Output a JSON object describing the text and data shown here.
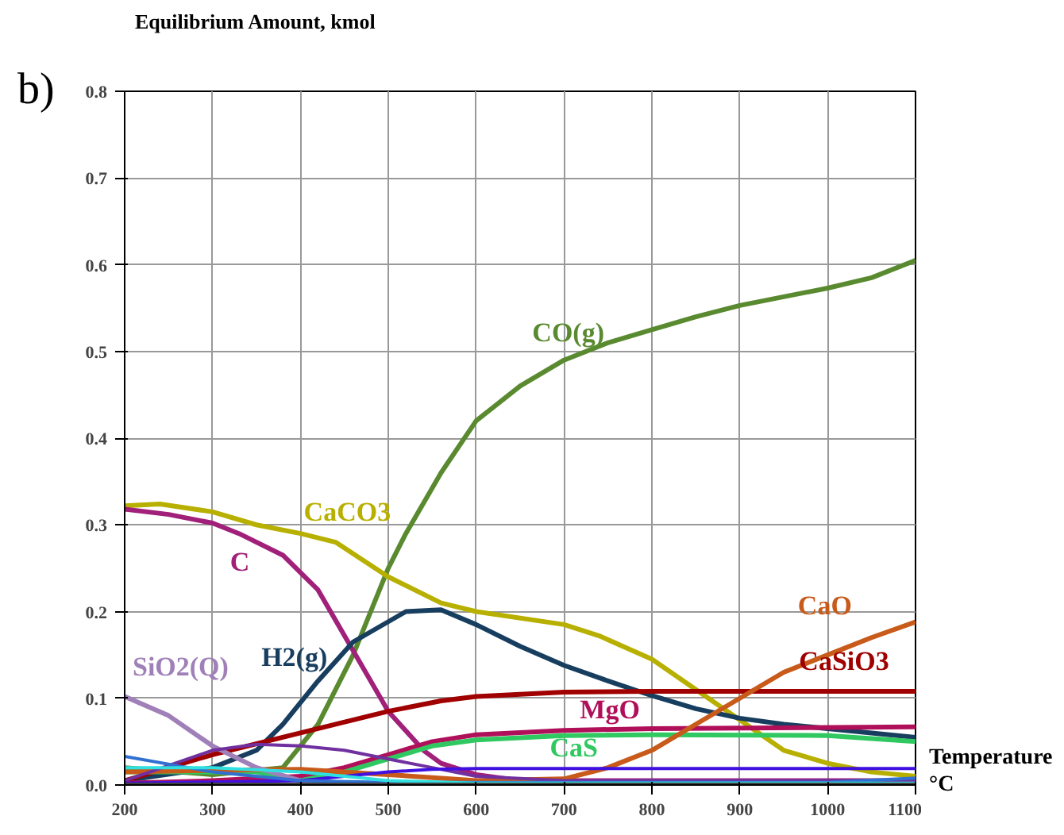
{
  "chart_data": {
    "type": "line",
    "ylabel": "Equilibrium Amount, kmol",
    "xlabel": "Temperature °C",
    "annotations": [
      "b)"
    ],
    "xlim": [
      200,
      1100
    ],
    "ylim": [
      0,
      0.8
    ],
    "xticks": [
      200,
      300,
      400,
      500,
      600,
      700,
      800,
      900,
      1000,
      1100
    ],
    "yticks": [
      {
        "value": 0,
        "label": "0.0"
      },
      0.1,
      0.2,
      0.3,
      0.4,
      0.5,
      0.6,
      0.7,
      0.8
    ],
    "grid": true,
    "marker": "none",
    "line_style": "solid",
    "series": [
      {
        "name": "CO(g)",
        "color": "#5a8a30",
        "x": [
          200,
          300,
          380,
          420,
          460,
          500,
          520,
          560,
          600,
          650,
          700,
          750,
          800,
          850,
          900,
          950,
          1000,
          1050,
          1100
        ],
        "values": [
          0.02,
          0.012,
          0.02,
          0.07,
          0.15,
          0.25,
          0.29,
          0.36,
          0.42,
          0.46,
          0.49,
          0.51,
          0.525,
          0.54,
          0.553,
          0.563,
          0.573,
          0.585,
          0.605
        ]
      },
      {
        "name": "CaCO3",
        "color": "#b8b000",
        "x": [
          200,
          240,
          300,
          350,
          400,
          440,
          500,
          560,
          600,
          700,
          740,
          800,
          850,
          900,
          950,
          1000,
          1050,
          1100
        ],
        "values": [
          0.322,
          0.324,
          0.315,
          0.3,
          0.29,
          0.28,
          0.24,
          0.21,
          0.2,
          0.185,
          0.172,
          0.145,
          0.11,
          0.075,
          0.04,
          0.025,
          0.015,
          0.01
        ]
      },
      {
        "name": "C",
        "color": "#a0207a",
        "x": [
          200,
          250,
          300,
          330,
          380,
          420,
          460,
          500,
          540,
          560,
          600,
          650,
          700,
          1100
        ],
        "values": [
          0.318,
          0.312,
          0.302,
          0.29,
          0.265,
          0.225,
          0.155,
          0.085,
          0.04,
          0.025,
          0.012,
          0.005,
          0.005,
          0.005
        ]
      },
      {
        "name": "H2(g)",
        "color": "#173e5f",
        "x": [
          200,
          300,
          350,
          380,
          420,
          460,
          520,
          560,
          600,
          650,
          700,
          750,
          800,
          850,
          900,
          950,
          1000,
          1050,
          1100
        ],
        "values": [
          0.005,
          0.02,
          0.04,
          0.07,
          0.12,
          0.165,
          0.2,
          0.202,
          0.185,
          0.16,
          0.138,
          0.12,
          0.103,
          0.088,
          0.077,
          0.07,
          0.065,
          0.06,
          0.055
        ]
      },
      {
        "name": "CaSiO3",
        "color": "#a00000",
        "x": [
          200,
          300,
          400,
          500,
          560,
          600,
          700,
          800,
          1100
        ],
        "values": [
          0.005,
          0.035,
          0.06,
          0.085,
          0.097,
          0.102,
          0.107,
          0.108,
          0.108
        ]
      },
      {
        "name": "MgO",
        "color": "#b0105a",
        "x": [
          200,
          300,
          400,
          450,
          500,
          550,
          600,
          700,
          800,
          1100
        ],
        "values": [
          0.002,
          0.005,
          0.01,
          0.02,
          0.035,
          0.05,
          0.058,
          0.063,
          0.065,
          0.067
        ]
      },
      {
        "name": "CaS",
        "color": "#30c860",
        "x": [
          200,
          350,
          400,
          450,
          500,
          550,
          600,
          700,
          800,
          1000,
          1100
        ],
        "values": [
          0.015,
          0.015,
          0.005,
          0.015,
          0.03,
          0.045,
          0.052,
          0.057,
          0.058,
          0.057,
          0.05
        ]
      },
      {
        "name": "CaO",
        "color": "#c85a1a",
        "x": [
          200,
          300,
          400,
          500,
          600,
          700,
          750,
          800,
          850,
          900,
          950,
          1000,
          1050,
          1100
        ],
        "values": [
          0.015,
          0.017,
          0.018,
          0.012,
          0.005,
          0.007,
          0.02,
          0.04,
          0.07,
          0.1,
          0.13,
          0.15,
          0.17,
          0.188
        ]
      },
      {
        "name": "SiO2(Q)",
        "color": "#a080b8",
        "x": [
          200,
          250,
          300,
          350,
          400,
          450
        ],
        "values": [
          0.102,
          0.08,
          0.045,
          0.02,
          0.005,
          0.002
        ]
      },
      {
        "color": "#7030a0",
        "x": [
          200,
          300,
          350,
          400,
          450,
          500,
          550,
          600,
          700,
          1100
        ],
        "values": [
          0.005,
          0.04,
          0.047,
          0.045,
          0.04,
          0.03,
          0.02,
          0.01,
          0.005,
          0.005
        ]
      },
      {
        "color": "#4010e0",
        "x": [
          200,
          400,
          450,
          500,
          550,
          600,
          1100
        ],
        "values": [
          0.002,
          0.005,
          0.01,
          0.015,
          0.018,
          0.019,
          0.019
        ]
      },
      {
        "color": "#3070d0",
        "x": [
          200,
          300,
          400,
          500,
          1000,
          1100
        ],
        "values": [
          0.033,
          0.015,
          0.005,
          0.003,
          0.003,
          0.008
        ]
      },
      {
        "color": "#30e0e0",
        "x": [
          200,
          300,
          400,
          500,
          600,
          1100
        ],
        "values": [
          0.02,
          0.02,
          0.015,
          0.005,
          0.002,
          0.002
        ]
      },
      {
        "color": "#404040",
        "x": [
          200,
          1100
        ],
        "values": [
          0.001,
          0.001
        ]
      }
    ]
  }
}
